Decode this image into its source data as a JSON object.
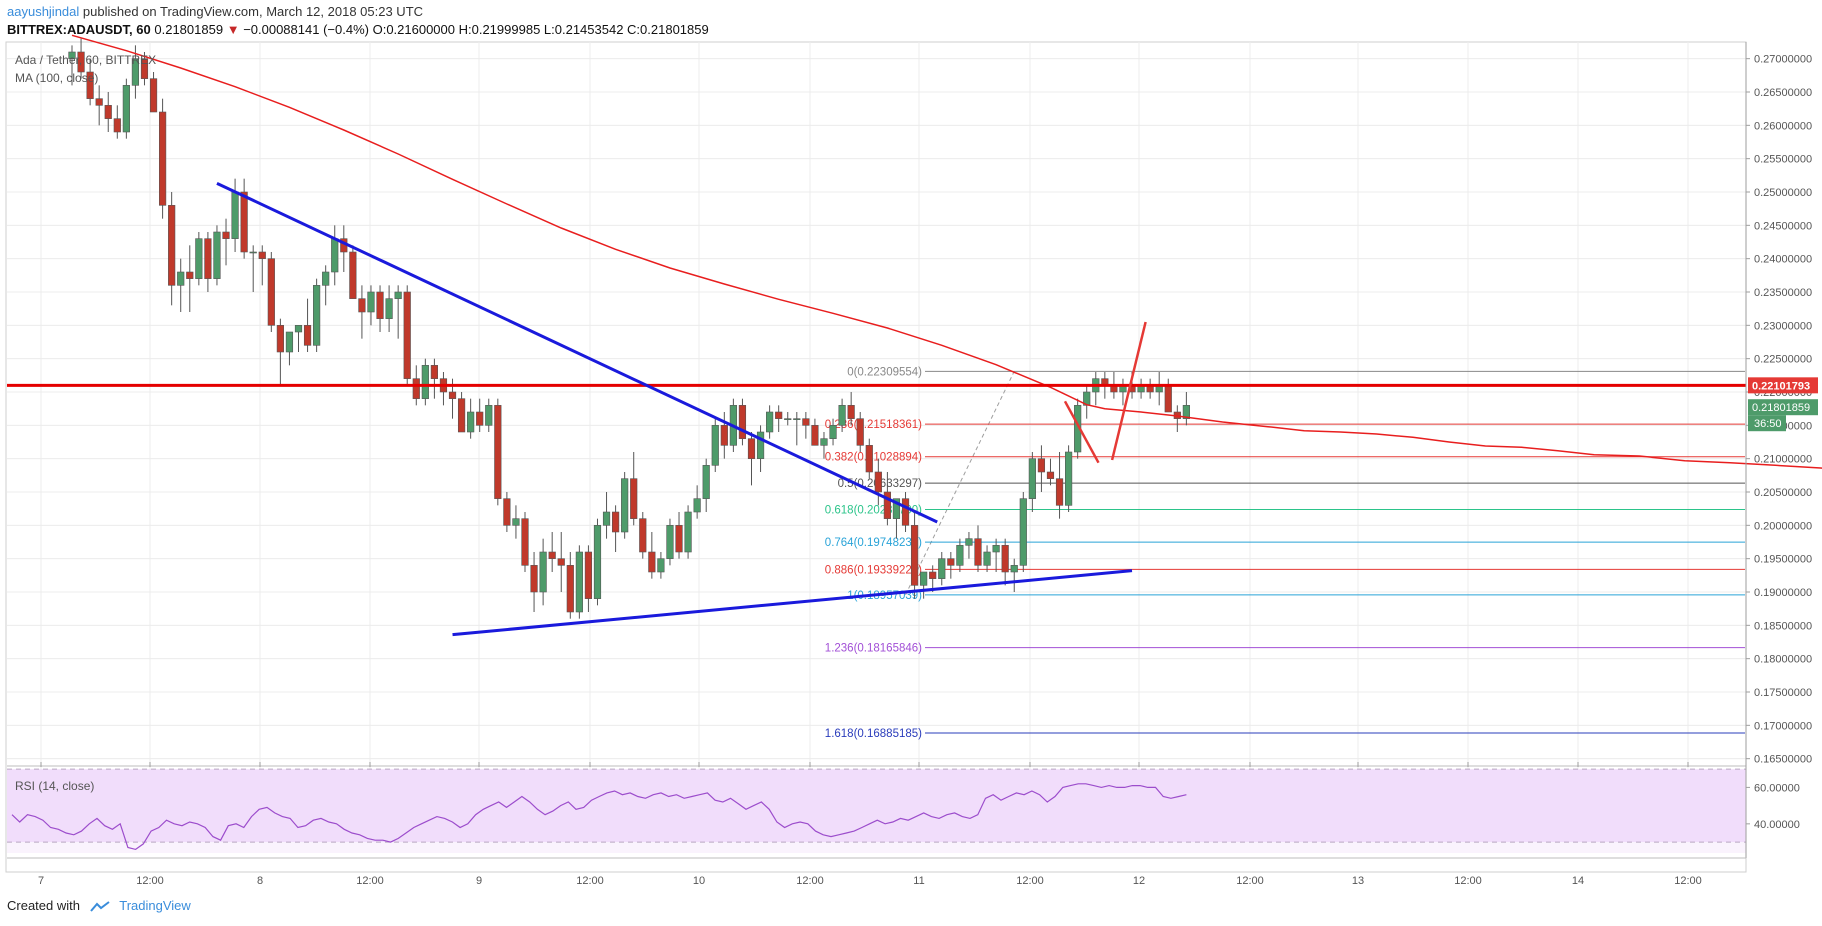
{
  "header": {
    "user": "aayushjindal",
    "published_text": " published on TradingView.com, March 12, 2018 05:23 UTC",
    "symbol": "BITTREX:ADAUSDT, 60",
    "last": "0.21801859",
    "change": "−0.00088141 (−0.4%)",
    "ohlc": "O:0.21600000 H:0.21999985 L:0.21453542 C:0.21801859"
  },
  "chart_title": "Ada / Tether, 60, BITTREX",
  "ma_label": "MA (100, close)",
  "rsi_label": "RSI (14, close)",
  "footer": {
    "created_with": "Created with",
    "brand": "TradingView"
  },
  "colors": {
    "up": "#4e9b6a",
    "down": "#c0392b",
    "ma": "#e81e1e",
    "trend": "#1a1adc",
    "resistance": "#e50000",
    "rsi": "#9c4dcc"
  },
  "chart_data": [
    {
      "type": "candlestick",
      "title": "Ada / Tether, 60, BITTREX",
      "ylim": [
        0.1645,
        0.2725
      ],
      "yticks": [
        "0.27000000",
        "0.26500000",
        "0.26000000",
        "0.25500000",
        "0.25000000",
        "0.24500000",
        "0.24000000",
        "0.23500000",
        "0.23000000",
        "0.22500000",
        "0.22000000",
        "0.21500000",
        "0.21000000",
        "0.20500000",
        "0.20000000",
        "0.19500000",
        "0.19000000",
        "0.18500000",
        "0.18000000",
        "0.17500000",
        "0.17000000",
        "0.16500000"
      ],
      "xticks": [
        "7",
        "12:00",
        "8",
        "12:00",
        "9",
        "12:00",
        "10",
        "12:00",
        "11",
        "12:00",
        "12",
        "12:00",
        "13",
        "12:00",
        "14",
        "12:00"
      ],
      "price_labels": {
        "resistance": "0.22101793",
        "last": "0.21801859",
        "countdown": "36:50"
      },
      "resistance_level": 0.221,
      "candles": [
        [
          0.27,
          0.272,
          0.266,
          0.271
        ],
        [
          0.271,
          0.273,
          0.267,
          0.268
        ],
        [
          0.268,
          0.27,
          0.263,
          0.264
        ],
        [
          0.264,
          0.266,
          0.26,
          0.263
        ],
        [
          0.263,
          0.265,
          0.259,
          0.261
        ],
        [
          0.261,
          0.263,
          0.258,
          0.259
        ],
        [
          0.259,
          0.267,
          0.258,
          0.266
        ],
        [
          0.266,
          0.272,
          0.264,
          0.27
        ],
        [
          0.27,
          0.271,
          0.266,
          0.267
        ],
        [
          0.267,
          0.268,
          0.262,
          0.262
        ],
        [
          0.262,
          0.264,
          0.246,
          0.248
        ],
        [
          0.248,
          0.25,
          0.233,
          0.236
        ],
        [
          0.236,
          0.24,
          0.232,
          0.238
        ],
        [
          0.238,
          0.242,
          0.232,
          0.237
        ],
        [
          0.237,
          0.244,
          0.236,
          0.243
        ],
        [
          0.243,
          0.244,
          0.235,
          0.237
        ],
        [
          0.237,
          0.245,
          0.236,
          0.244
        ],
        [
          0.244,
          0.246,
          0.239,
          0.243
        ],
        [
          0.243,
          0.252,
          0.241,
          0.25
        ],
        [
          0.25,
          0.252,
          0.24,
          0.241
        ],
        [
          0.241,
          0.242,
          0.235,
          0.241
        ],
        [
          0.241,
          0.242,
          0.236,
          0.24
        ],
        [
          0.24,
          0.241,
          0.229,
          0.23
        ],
        [
          0.23,
          0.231,
          0.221,
          0.226
        ],
        [
          0.226,
          0.229,
          0.224,
          0.229
        ],
        [
          0.229,
          0.23,
          0.226,
          0.23
        ],
        [
          0.23,
          0.234,
          0.226,
          0.227
        ],
        [
          0.227,
          0.237,
          0.226,
          0.236
        ],
        [
          0.236,
          0.239,
          0.233,
          0.238
        ],
        [
          0.238,
          0.245,
          0.236,
          0.243
        ],
        [
          0.243,
          0.245,
          0.238,
          0.241
        ],
        [
          0.241,
          0.242,
          0.234,
          0.234
        ],
        [
          0.234,
          0.236,
          0.228,
          0.232
        ],
        [
          0.232,
          0.236,
          0.23,
          0.235
        ],
        [
          0.235,
          0.236,
          0.229,
          0.231
        ],
        [
          0.231,
          0.236,
          0.229,
          0.234
        ],
        [
          0.234,
          0.236,
          0.228,
          0.235
        ],
        [
          0.235,
          0.236,
          0.221,
          0.222
        ],
        [
          0.222,
          0.224,
          0.218,
          0.219
        ],
        [
          0.219,
          0.225,
          0.218,
          0.224
        ],
        [
          0.224,
          0.225,
          0.219,
          0.222
        ],
        [
          0.222,
          0.223,
          0.218,
          0.22
        ],
        [
          0.22,
          0.222,
          0.216,
          0.219
        ],
        [
          0.219,
          0.22,
          0.214,
          0.214
        ],
        [
          0.214,
          0.219,
          0.213,
          0.217
        ],
        [
          0.217,
          0.219,
          0.214,
          0.215
        ],
        [
          0.215,
          0.219,
          0.214,
          0.218
        ],
        [
          0.218,
          0.219,
          0.203,
          0.204
        ],
        [
          0.204,
          0.205,
          0.199,
          0.2
        ],
        [
          0.2,
          0.203,
          0.198,
          0.201
        ],
        [
          0.201,
          0.202,
          0.193,
          0.194
        ],
        [
          0.194,
          0.196,
          0.187,
          0.19
        ],
        [
          0.19,
          0.198,
          0.188,
          0.196
        ],
        [
          0.196,
          0.199,
          0.193,
          0.195
        ],
        [
          0.195,
          0.199,
          0.19,
          0.194
        ],
        [
          0.194,
          0.196,
          0.186,
          0.187
        ],
        [
          0.187,
          0.197,
          0.186,
          0.196
        ],
        [
          0.196,
          0.197,
          0.187,
          0.189
        ],
        [
          0.189,
          0.201,
          0.188,
          0.2
        ],
        [
          0.2,
          0.205,
          0.198,
          0.202
        ],
        [
          0.202,
          0.203,
          0.196,
          0.199
        ],
        [
          0.199,
          0.208,
          0.198,
          0.207
        ],
        [
          0.207,
          0.211,
          0.2,
          0.201
        ],
        [
          0.201,
          0.202,
          0.195,
          0.196
        ],
        [
          0.196,
          0.199,
          0.192,
          0.193
        ],
        [
          0.193,
          0.196,
          0.192,
          0.195
        ],
        [
          0.195,
          0.201,
          0.194,
          0.2
        ],
        [
          0.2,
          0.202,
          0.195,
          0.196
        ],
        [
          0.196,
          0.203,
          0.195,
          0.202
        ],
        [
          0.202,
          0.206,
          0.201,
          0.204
        ],
        [
          0.204,
          0.21,
          0.202,
          0.209
        ],
        [
          0.209,
          0.216,
          0.208,
          0.215
        ],
        [
          0.215,
          0.217,
          0.21,
          0.212
        ],
        [
          0.212,
          0.219,
          0.211,
          0.218
        ],
        [
          0.218,
          0.219,
          0.212,
          0.213
        ],
        [
          0.213,
          0.214,
          0.206,
          0.21
        ],
        [
          0.21,
          0.215,
          0.208,
          0.214
        ],
        [
          0.214,
          0.218,
          0.213,
          0.217
        ],
        [
          0.217,
          0.218,
          0.214,
          0.216
        ],
        [
          0.216,
          0.217,
          0.215,
          0.216
        ],
        [
          0.216,
          0.217,
          0.212,
          0.216
        ],
        [
          0.216,
          0.217,
          0.213,
          0.215
        ],
        [
          0.215,
          0.216,
          0.212,
          0.212
        ],
        [
          0.212,
          0.214,
          0.21,
          0.213
        ],
        [
          0.213,
          0.216,
          0.212,
          0.215
        ],
        [
          0.215,
          0.219,
          0.214,
          0.218
        ],
        [
          0.218,
          0.22,
          0.215,
          0.216
        ],
        [
          0.216,
          0.217,
          0.211,
          0.212
        ],
        [
          0.212,
          0.213,
          0.207,
          0.208
        ],
        [
          0.208,
          0.21,
          0.203,
          0.205
        ],
        [
          0.205,
          0.208,
          0.2,
          0.201
        ],
        [
          0.201,
          0.203,
          0.198,
          0.204
        ],
        [
          0.204,
          0.205,
          0.199,
          0.2
        ],
        [
          0.2,
          0.202,
          0.189,
          0.191
        ],
        [
          0.191,
          0.193,
          0.189,
          0.193
        ],
        [
          0.193,
          0.194,
          0.19,
          0.192
        ],
        [
          0.192,
          0.196,
          0.191,
          0.195
        ],
        [
          0.195,
          0.196,
          0.192,
          0.194
        ],
        [
          0.194,
          0.198,
          0.193,
          0.197
        ],
        [
          0.197,
          0.199,
          0.195,
          0.198
        ],
        [
          0.198,
          0.2,
          0.193,
          0.194
        ],
        [
          0.194,
          0.197,
          0.193,
          0.196
        ],
        [
          0.196,
          0.198,
          0.193,
          0.197
        ],
        [
          0.197,
          0.198,
          0.191,
          0.193
        ],
        [
          0.193,
          0.195,
          0.19,
          0.194
        ],
        [
          0.194,
          0.205,
          0.193,
          0.204
        ],
        [
          0.204,
          0.211,
          0.202,
          0.21
        ],
        [
          0.21,
          0.212,
          0.205,
          0.208
        ],
        [
          0.208,
          0.21,
          0.206,
          0.207
        ],
        [
          0.207,
          0.211,
          0.201,
          0.203
        ],
        [
          0.203,
          0.212,
          0.202,
          0.211
        ],
        [
          0.211,
          0.219,
          0.21,
          0.218
        ],
        [
          0.218,
          0.221,
          0.216,
          0.22
        ],
        [
          0.22,
          0.223,
          0.218,
          0.222
        ],
        [
          0.222,
          0.223,
          0.219,
          0.221
        ],
        [
          0.221,
          0.223,
          0.219,
          0.22
        ],
        [
          0.22,
          0.222,
          0.218,
          0.221
        ],
        [
          0.221,
          0.223,
          0.219,
          0.22
        ],
        [
          0.22,
          0.222,
          0.219,
          0.221
        ],
        [
          0.221,
          0.222,
          0.219,
          0.22
        ],
        [
          0.22,
          0.223,
          0.218,
          0.221
        ],
        [
          0.221,
          0.222,
          0.217,
          0.217
        ],
        [
          0.217,
          0.218,
          0.214,
          0.216
        ],
        [
          0.216,
          0.22,
          0.215,
          0.218
        ]
      ],
      "ma_100": [
        [
          0,
          0.2735
        ],
        [
          6,
          0.2712
        ],
        [
          12,
          0.2686
        ],
        [
          18,
          0.2658
        ],
        [
          24,
          0.2627
        ],
        [
          30,
          0.2593
        ],
        [
          36,
          0.2557
        ],
        [
          42,
          0.2519
        ],
        [
          48,
          0.2482
        ],
        [
          54,
          0.2446
        ],
        [
          60,
          0.2414
        ],
        [
          66,
          0.2386
        ],
        [
          72,
          0.2362
        ],
        [
          78,
          0.2339
        ],
        [
          84,
          0.2318
        ],
        [
          90,
          0.2296
        ],
        [
          96,
          0.227
        ],
        [
          102,
          0.2241
        ],
        [
          108,
          0.2207
        ],
        [
          112,
          0.2181
        ],
        [
          114,
          0.2175
        ],
        [
          118,
          0.217
        ],
        [
          122,
          0.2164
        ],
        [
          127,
          0.2155
        ],
        [
          132,
          0.2148
        ],
        [
          136,
          0.2142
        ],
        [
          140,
          0.214
        ],
        [
          144,
          0.2137
        ],
        [
          148,
          0.2132
        ],
        [
          152,
          0.2125
        ],
        [
          156,
          0.2119
        ],
        [
          160,
          0.2117
        ],
        [
          164,
          0.2112
        ],
        [
          168,
          0.2106
        ],
        [
          173,
          0.2104
        ],
        [
          178,
          0.2097
        ],
        [
          183,
          0.2094
        ],
        [
          188,
          0.209
        ],
        [
          193,
          0.2086
        ],
        [
          198,
          0.2082
        ],
        [
          202,
          0.208
        ],
        [
          206,
          0.2077
        ],
        [
          210,
          0.2074
        ],
        [
          214,
          0.2071
        ],
        [
          218,
          0.2063
        ],
        [
          222,
          0.2045
        ],
        [
          226,
          0.2022
        ],
        [
          230,
          0.2004
        ],
        [
          234,
          0.1993
        ],
        [
          238,
          0.1987
        ]
      ],
      "fibonacci": [
        {
          "level": "0",
          "value": 0.22309554,
          "label": "0(0.22309554)",
          "color": "#888888"
        },
        {
          "level": "0.236",
          "value": 0.21518361,
          "label": "0.236(0.21518361)",
          "color": "#e53935"
        },
        {
          "level": "0.382",
          "value": 0.21028894,
          "label": "0.382(0.21028894)",
          "color": "#e53935"
        },
        {
          "level": "0.5",
          "value": 0.20633297,
          "label": "0.5(0.20633297)",
          "color": "#555555"
        },
        {
          "level": "0.618",
          "value": 0.202377,
          "label": "0.618(0.20237700)",
          "color": "#2bc48a"
        },
        {
          "level": "0.764",
          "value": 0.19748233,
          "label": "0.764(0.19748233)",
          "color": "#29a3d8"
        },
        {
          "level": "0.886",
          "value": 0.19339226,
          "label": "0.886(0.19339226)",
          "color": "#e53935"
        },
        {
          "level": "1",
          "value": 0.18957039,
          "label": "1(0.18957039)",
          "color": "#29a3d8"
        },
        {
          "level": "1.236",
          "value": 0.18165846,
          "label": "1.236(0.18165846)",
          "color": "#a24fd6"
        },
        {
          "level": "1.618",
          "value": 0.16885185,
          "label": "1.618(0.16885185)",
          "color": "#2a3cbb"
        }
      ]
    },
    {
      "type": "line",
      "title": "RSI (14, close)",
      "ylim": [
        24,
        69
      ],
      "yticks": [
        "60.00000",
        "40.00000"
      ],
      "bands": [
        30,
        70
      ],
      "values": [
        45,
        41,
        45,
        44,
        42,
        38,
        37,
        35,
        34,
        36,
        40,
        43,
        39,
        37,
        40,
        27,
        26,
        29,
        36,
        38,
        42,
        40,
        39,
        41,
        40,
        38,
        33,
        31,
        39,
        40,
        38,
        44,
        48,
        49,
        46,
        44,
        43,
        38,
        39,
        42,
        43,
        41,
        40,
        37,
        35,
        34,
        32,
        31,
        31,
        30,
        32,
        35,
        38,
        40,
        42,
        44,
        43,
        41,
        38,
        40,
        45,
        48,
        50,
        52,
        49,
        52,
        55,
        52,
        48,
        45,
        47,
        50,
        52,
        48,
        49,
        53,
        55,
        57,
        58,
        56,
        57,
        55,
        54,
        56,
        57,
        55,
        56,
        54,
        55,
        56,
        57,
        53,
        52,
        54,
        51,
        48,
        50,
        52,
        48,
        41,
        38,
        40,
        41,
        40,
        36,
        34,
        33,
        34,
        35,
        36,
        38,
        40,
        42,
        40,
        41,
        43,
        42,
        44,
        46,
        44,
        43,
        45,
        46,
        44,
        43,
        45,
        54,
        56,
        53,
        55,
        57,
        56,
        58,
        56,
        52,
        55,
        60,
        61,
        62,
        62,
        61,
        60,
        61,
        60,
        60,
        61,
        61,
        60,
        60,
        55,
        54,
        55,
        56
      ]
    }
  ]
}
